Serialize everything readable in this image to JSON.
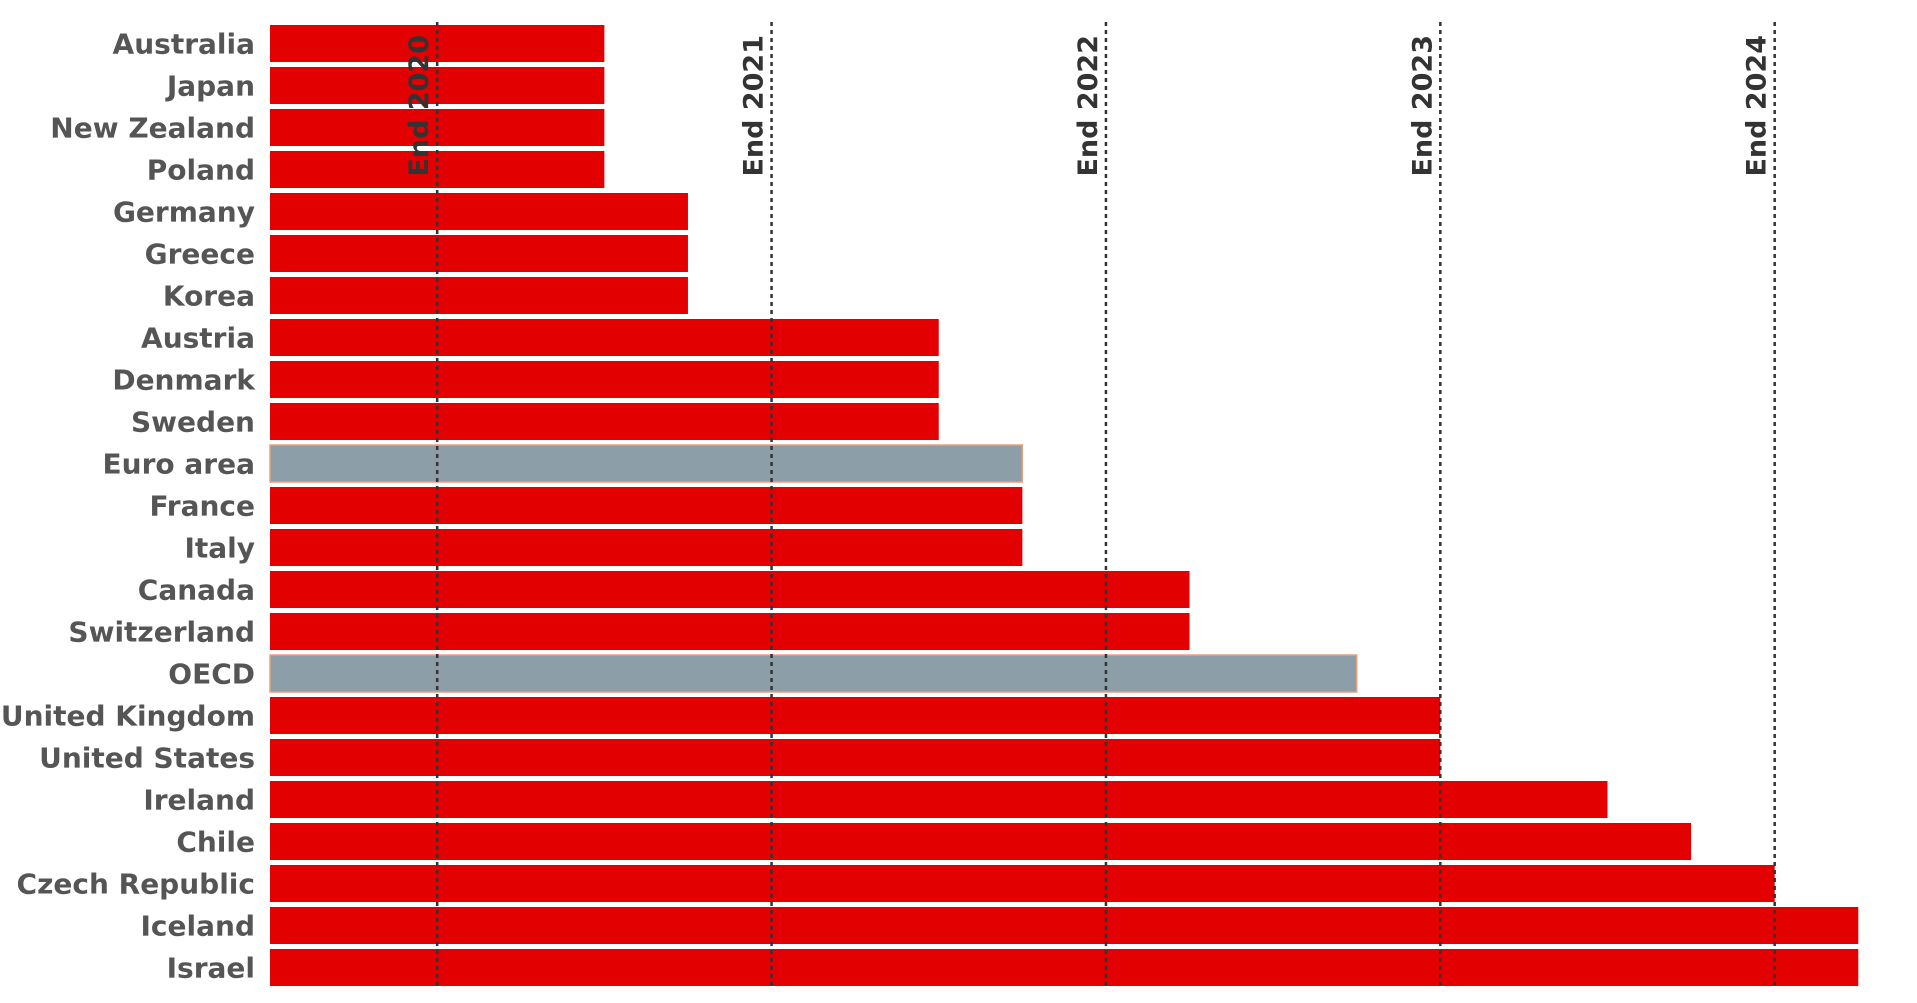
{
  "chart_data": {
    "type": "bar",
    "orientation": "horizontal",
    "categories": [
      "Australia",
      "Japan",
      "New Zealand",
      "Poland",
      "Germany",
      "Greece",
      "Korea",
      "Austria",
      "Denmark",
      "Sweden",
      "Euro area",
      "France",
      "Italy",
      "Canada",
      "Switzerland",
      "OECD",
      "United Kingdom",
      "United States",
      "Ireland",
      "Chile",
      "Czech Republic",
      "Iceland",
      "Israel"
    ],
    "values": [
      2020.5,
      2020.5,
      2020.5,
      2020.5,
      2020.75,
      2020.75,
      2020.75,
      2021.5,
      2021.5,
      2021.5,
      2021.75,
      2021.75,
      2021.75,
      2022.25,
      2022.25,
      2022.75,
      2023.0,
      2023.0,
      2023.5,
      2023.75,
      2024.0,
      2024.25,
      2024.25
    ],
    "highlight_categories": [
      "Euro area",
      "OECD"
    ],
    "xlim": [
      2019.5,
      2024.3
    ],
    "reference_lines": [
      {
        "value": 2020.0,
        "label": "End 2020"
      },
      {
        "value": 2021.0,
        "label": "End 2021"
      },
      {
        "value": 2022.0,
        "label": "End 2022"
      },
      {
        "value": 2023.0,
        "label": "End 2023"
      },
      {
        "value": 2024.0,
        "label": "End 2024"
      }
    ],
    "title": "",
    "xlabel": "",
    "ylabel": "",
    "grid": false,
    "legend": "none"
  },
  "colors": {
    "bar": "#e30000",
    "bar_highlight": "#8c9ea7",
    "bar_highlight_border": "#e8a080",
    "label": "#555555",
    "reference_line": "#333333"
  }
}
